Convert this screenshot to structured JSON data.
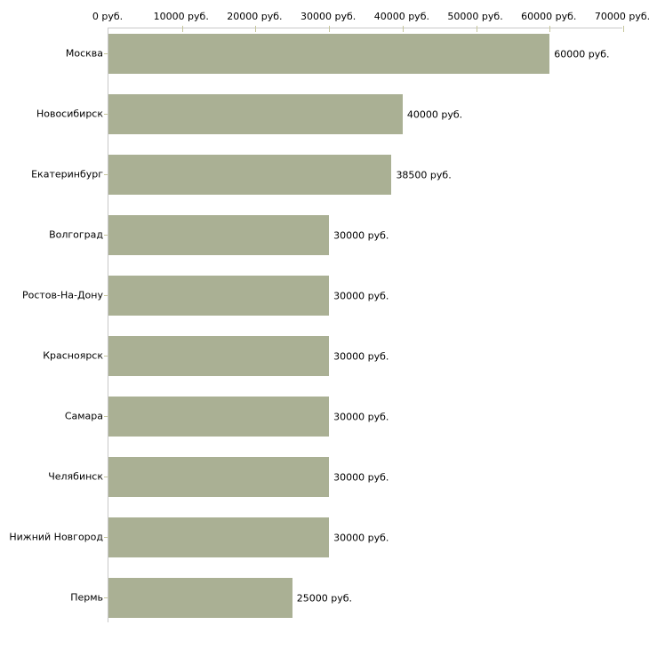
{
  "chart_data": {
    "type": "bar",
    "orientation": "horizontal",
    "title": "",
    "xlabel": "",
    "ylabel": "",
    "categories": [
      "Москва",
      "Новосибирск",
      "Екатеринбург",
      "Волгоград",
      "Ростов-На-Дону",
      "Красноярск",
      "Самара",
      "Челябинск",
      "Нижний Новгород",
      "Пермь"
    ],
    "values": [
      60000,
      40000,
      38500,
      30000,
      30000,
      30000,
      30000,
      30000,
      30000,
      25000
    ],
    "value_labels": [
      "60000 руб.",
      "40000 руб.",
      "38500 руб.",
      "30000 руб.",
      "30000 руб.",
      "30000 руб.",
      "30000 руб.",
      "30000 руб.",
      "30000 руб.",
      "25000 руб."
    ],
    "xlim": [
      0,
      70000
    ],
    "xticks": [
      0,
      10000,
      20000,
      30000,
      40000,
      50000,
      60000,
      70000
    ],
    "xtick_labels": [
      "0 руб.",
      "10000 руб.",
      "20000 руб.",
      "30000 руб.",
      "40000 руб.",
      "50000 руб.",
      "60000 руб.",
      "70000 руб."
    ],
    "grid": false,
    "legend": false,
    "colors": {
      "bar": "#aab094",
      "axis": "#c8c8c8",
      "tick": "#c6c69c",
      "text": "#000000",
      "background": "#ffffff"
    }
  }
}
